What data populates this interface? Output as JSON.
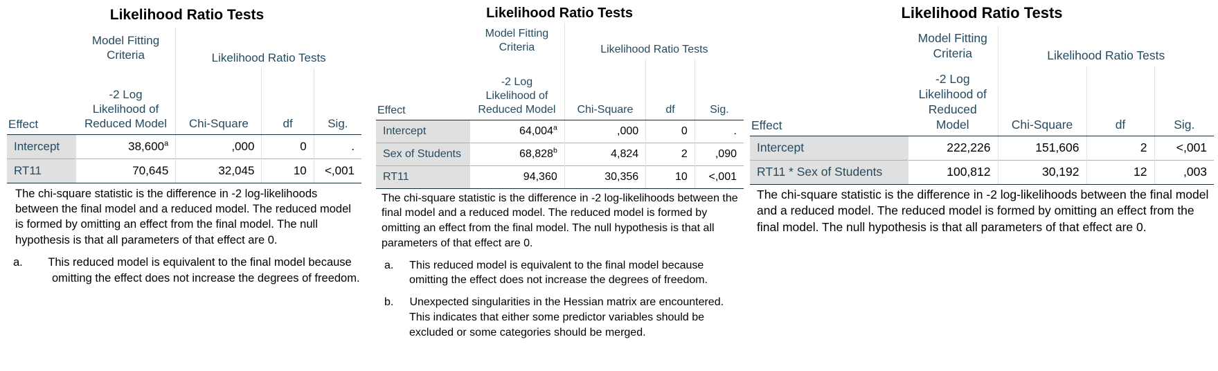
{
  "panels": [
    {
      "title": "Likelihood Ratio Tests",
      "headers": {
        "effect": "Effect",
        "mfc_group": "Model Fitting Criteria",
        "lrt_group": "Likelihood Ratio Tests",
        "neg2ll": "-2 Log Likelihood of Reduced Model",
        "chi": "Chi-Square",
        "df": "df",
        "sig": "Sig."
      },
      "rows": [
        {
          "effect": "Intercept",
          "neg2ll": "38,600",
          "sup": "a",
          "chi": ",000",
          "df": "0",
          "sig": "."
        },
        {
          "effect": "RT11",
          "neg2ll": "70,645",
          "sup": "",
          "chi": "32,045",
          "df": "10",
          "sig": "<,001"
        }
      ],
      "footnote": "The chi-square statistic is the difference in -2 log-likelihoods between the final model and a reduced model. The reduced model is formed by omitting an effect from the final model. The null hypothesis is that all parameters of that effect are 0.",
      "notes": [
        {
          "label": "a.",
          "text": "This reduced model is equivalent to the final model because omitting the effect does not increase the degrees of freedom."
        }
      ]
    },
    {
      "title": "Likelihood Ratio Tests",
      "headers": {
        "effect": "Effect",
        "mfc_group": "Model Fitting Criteria",
        "lrt_group": "Likelihood Ratio Tests",
        "neg2ll": "-2 Log Likelihood of Reduced Model",
        "chi": "Chi-Square",
        "df": "df",
        "sig": "Sig."
      },
      "rows": [
        {
          "effect": "Intercept",
          "neg2ll": "64,004",
          "sup": "a",
          "chi": ",000",
          "df": "0",
          "sig": "."
        },
        {
          "effect": "Sex of Students",
          "neg2ll": "68,828",
          "sup": "b",
          "chi": "4,824",
          "df": "2",
          "sig": ",090"
        },
        {
          "effect": "RT11",
          "neg2ll": "94,360",
          "sup": "",
          "chi": "30,356",
          "df": "10",
          "sig": "<,001"
        }
      ],
      "footnote": "The chi-square statistic is the difference in -2 log-likelihoods between the final model and a reduced model. The reduced model is formed by omitting an effect from the final model. The null hypothesis is that all parameters of that effect are 0.",
      "notes": [
        {
          "label": "a.",
          "text": "This reduced model is equivalent to the final model because omitting the effect does not increase the degrees of freedom."
        },
        {
          "label": "b.",
          "text": "Unexpected singularities in the Hessian matrix are encountered. This indicates that either some predictor variables should be excluded or some categories should be merged."
        }
      ]
    },
    {
      "title": "Likelihood Ratio Tests",
      "headers": {
        "effect": "Effect",
        "mfc_group": "Model Fitting Criteria",
        "lrt_group": "Likelihood Ratio Tests",
        "neg2ll": "-2 Log Likelihood of Reduced Model",
        "chi": "Chi-Square",
        "df": "df",
        "sig": "Sig."
      },
      "rows": [
        {
          "effect": "Intercept",
          "neg2ll": "222,226",
          "sup": "",
          "chi": "151,606",
          "df": "2",
          "sig": "<,001"
        },
        {
          "effect": "RT11 * Sex of Students",
          "neg2ll": "100,812",
          "sup": "",
          "chi": "30,192",
          "df": "12",
          "sig": ",003"
        }
      ],
      "footnote": "The chi-square statistic is the difference in -2 log-likelihoods between the final model and a reduced model. The reduced model is formed by omitting an effect from the final model. The null hypothesis is that all parameters of that effect are 0.",
      "notes": []
    }
  ]
}
